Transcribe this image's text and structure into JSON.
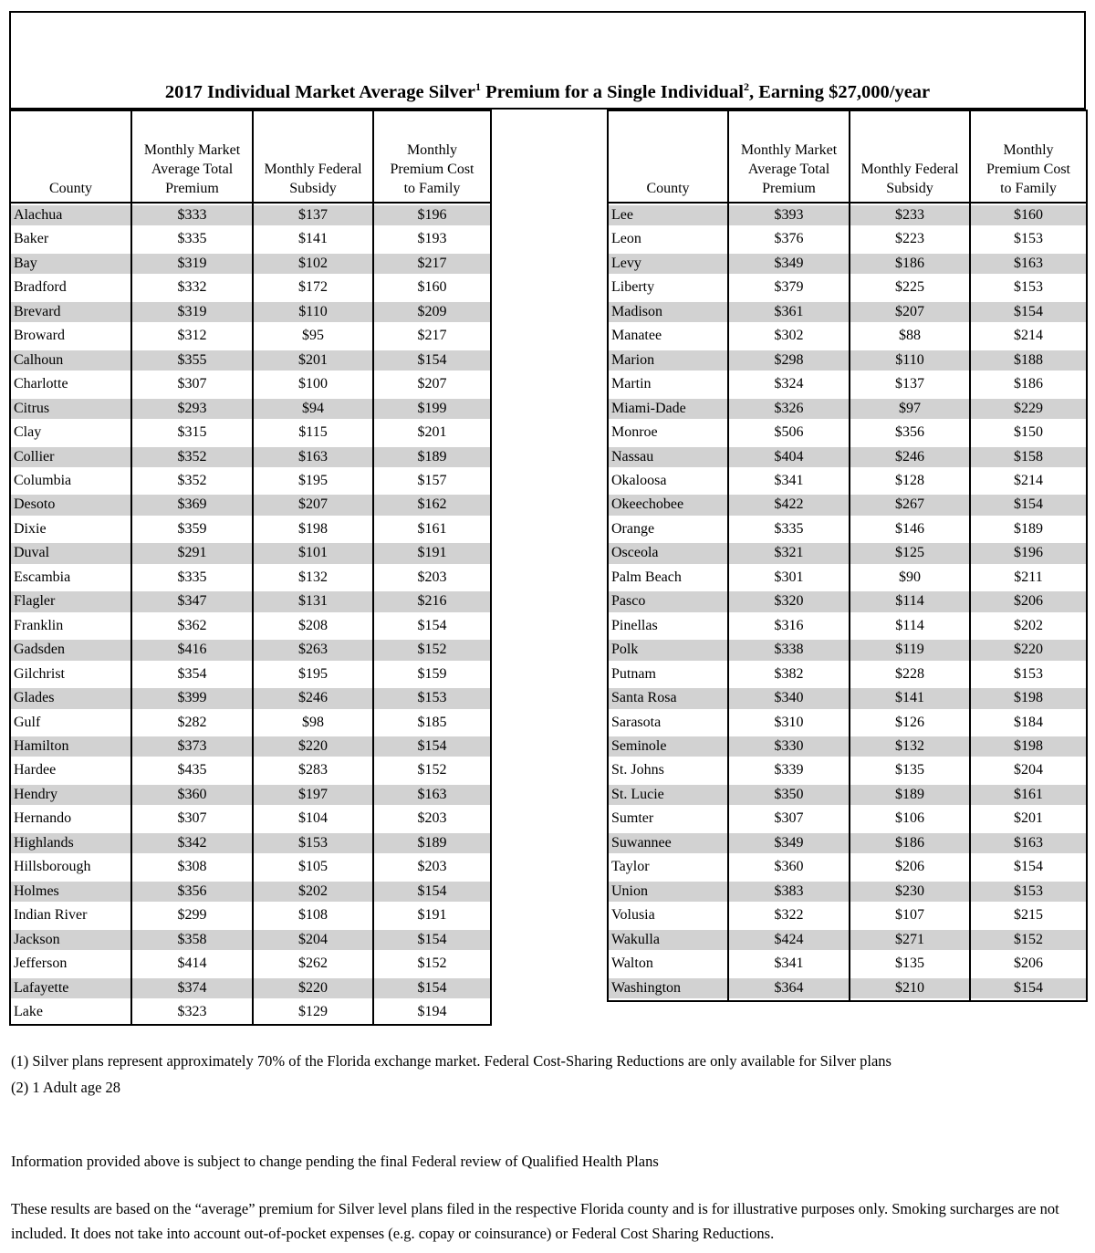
{
  "colors": {
    "row_stripe": "#d2d2d2",
    "border": "#000000",
    "background": "#ffffff"
  },
  "title": {
    "part1": "2017 Individual Market Average Silver",
    "sup1": "1",
    "part2": " Premium for a Single Individual",
    "sup2": "2",
    "part3": ", Earning $27,000/year"
  },
  "tables": {
    "left": {
      "columns": [
        "County",
        "Monthly Market\nAverage Total\nPremium",
        "Monthly Federal\nSubsidy",
        "Monthly\nPremium Cost\nto Family"
      ],
      "rows": [
        [
          "Alachua",
          "$333",
          "$137",
          "$196"
        ],
        [
          "Baker",
          "$335",
          "$141",
          "$193"
        ],
        [
          "Bay",
          "$319",
          "$102",
          "$217"
        ],
        [
          "Bradford",
          "$332",
          "$172",
          "$160"
        ],
        [
          "Brevard",
          "$319",
          "$110",
          "$209"
        ],
        [
          "Broward",
          "$312",
          "$95",
          "$217"
        ],
        [
          "Calhoun",
          "$355",
          "$201",
          "$154"
        ],
        [
          "Charlotte",
          "$307",
          "$100",
          "$207"
        ],
        [
          "Citrus",
          "$293",
          "$94",
          "$199"
        ],
        [
          "Clay",
          "$315",
          "$115",
          "$201"
        ],
        [
          "Collier",
          "$352",
          "$163",
          "$189"
        ],
        [
          "Columbia",
          "$352",
          "$195",
          "$157"
        ],
        [
          "Desoto",
          "$369",
          "$207",
          "$162"
        ],
        [
          "Dixie",
          "$359",
          "$198",
          "$161"
        ],
        [
          "Duval",
          "$291",
          "$101",
          "$191"
        ],
        [
          "Escambia",
          "$335",
          "$132",
          "$203"
        ],
        [
          "Flagler",
          "$347",
          "$131",
          "$216"
        ],
        [
          "Franklin",
          "$362",
          "$208",
          "$154"
        ],
        [
          "Gadsden",
          "$416",
          "$263",
          "$152"
        ],
        [
          "Gilchrist",
          "$354",
          "$195",
          "$159"
        ],
        [
          "Glades",
          "$399",
          "$246",
          "$153"
        ],
        [
          "Gulf",
          "$282",
          "$98",
          "$185"
        ],
        [
          "Hamilton",
          "$373",
          "$220",
          "$154"
        ],
        [
          "Hardee",
          "$435",
          "$283",
          "$152"
        ],
        [
          "Hendry",
          "$360",
          "$197",
          "$163"
        ],
        [
          "Hernando",
          "$307",
          "$104",
          "$203"
        ],
        [
          "Highlands",
          "$342",
          "$153",
          "$189"
        ],
        [
          "Hillsborough",
          "$308",
          "$105",
          "$203"
        ],
        [
          "Holmes",
          "$356",
          "$202",
          "$154"
        ],
        [
          "Indian River",
          "$299",
          "$108",
          "$191"
        ],
        [
          "Jackson",
          "$358",
          "$204",
          "$154"
        ],
        [
          "Jefferson",
          "$414",
          "$262",
          "$152"
        ],
        [
          "Lafayette",
          "$374",
          "$220",
          "$154"
        ],
        [
          "Lake",
          "$323",
          "$129",
          "$194"
        ]
      ]
    },
    "right": {
      "columns": [
        "County",
        "Monthly Market\nAverage Total\nPremium",
        "Monthly Federal\nSubsidy",
        "Monthly\nPremium Cost\nto Family"
      ],
      "rows": [
        [
          "Lee",
          "$393",
          "$233",
          "$160"
        ],
        [
          "Leon",
          "$376",
          "$223",
          "$153"
        ],
        [
          "Levy",
          "$349",
          "$186",
          "$163"
        ],
        [
          "Liberty",
          "$379",
          "$225",
          "$153"
        ],
        [
          "Madison",
          "$361",
          "$207",
          "$154"
        ],
        [
          "Manatee",
          "$302",
          "$88",
          "$214"
        ],
        [
          "Marion",
          "$298",
          "$110",
          "$188"
        ],
        [
          "Martin",
          "$324",
          "$137",
          "$186"
        ],
        [
          "Miami-Dade",
          "$326",
          "$97",
          "$229"
        ],
        [
          "Monroe",
          "$506",
          "$356",
          "$150"
        ],
        [
          "Nassau",
          "$404",
          "$246",
          "$158"
        ],
        [
          "Okaloosa",
          "$341",
          "$128",
          "$214"
        ],
        [
          "Okeechobee",
          "$422",
          "$267",
          "$154"
        ],
        [
          "Orange",
          "$335",
          "$146",
          "$189"
        ],
        [
          "Osceola",
          "$321",
          "$125",
          "$196"
        ],
        [
          "Palm Beach",
          "$301",
          "$90",
          "$211"
        ],
        [
          "Pasco",
          "$320",
          "$114",
          "$206"
        ],
        [
          "Pinellas",
          "$316",
          "$114",
          "$202"
        ],
        [
          "Polk",
          "$338",
          "$119",
          "$220"
        ],
        [
          "Putnam",
          "$382",
          "$228",
          "$153"
        ],
        [
          "Santa Rosa",
          "$340",
          "$141",
          "$198"
        ],
        [
          "Sarasota",
          "$310",
          "$126",
          "$184"
        ],
        [
          "Seminole",
          "$330",
          "$132",
          "$198"
        ],
        [
          "St. Johns",
          "$339",
          "$135",
          "$204"
        ],
        [
          "St. Lucie",
          "$350",
          "$189",
          "$161"
        ],
        [
          "Sumter",
          "$307",
          "$106",
          "$201"
        ],
        [
          "Suwannee",
          "$349",
          "$186",
          "$163"
        ],
        [
          "Taylor",
          "$360",
          "$206",
          "$154"
        ],
        [
          "Union",
          "$383",
          "$230",
          "$153"
        ],
        [
          "Volusia",
          "$322",
          "$107",
          "$215"
        ],
        [
          "Wakulla",
          "$424",
          "$271",
          "$152"
        ],
        [
          "Walton",
          "$341",
          "$135",
          "$206"
        ],
        [
          "Washington",
          "$364",
          "$210",
          "$154"
        ]
      ]
    }
  },
  "footnotes": {
    "fn1": "(1) Silver plans represent approximately 70% of the Florida exchange market.  Federal Cost-Sharing Reductions are only available for Silver plans",
    "fn2": "(2) 1 Adult age 28",
    "review_note": "Information provided above is subject to change pending the final Federal review of Qualified Health Plans",
    "disclaimer": "These results are based on the “average” premium for Silver level plans filed in the respective Florida county and is for illustrative purposes only. Smoking surcharges are not included. It does not take into account out-of-pocket expenses (e.g. copay or coinsurance) or Federal Cost Sharing Reductions."
  }
}
